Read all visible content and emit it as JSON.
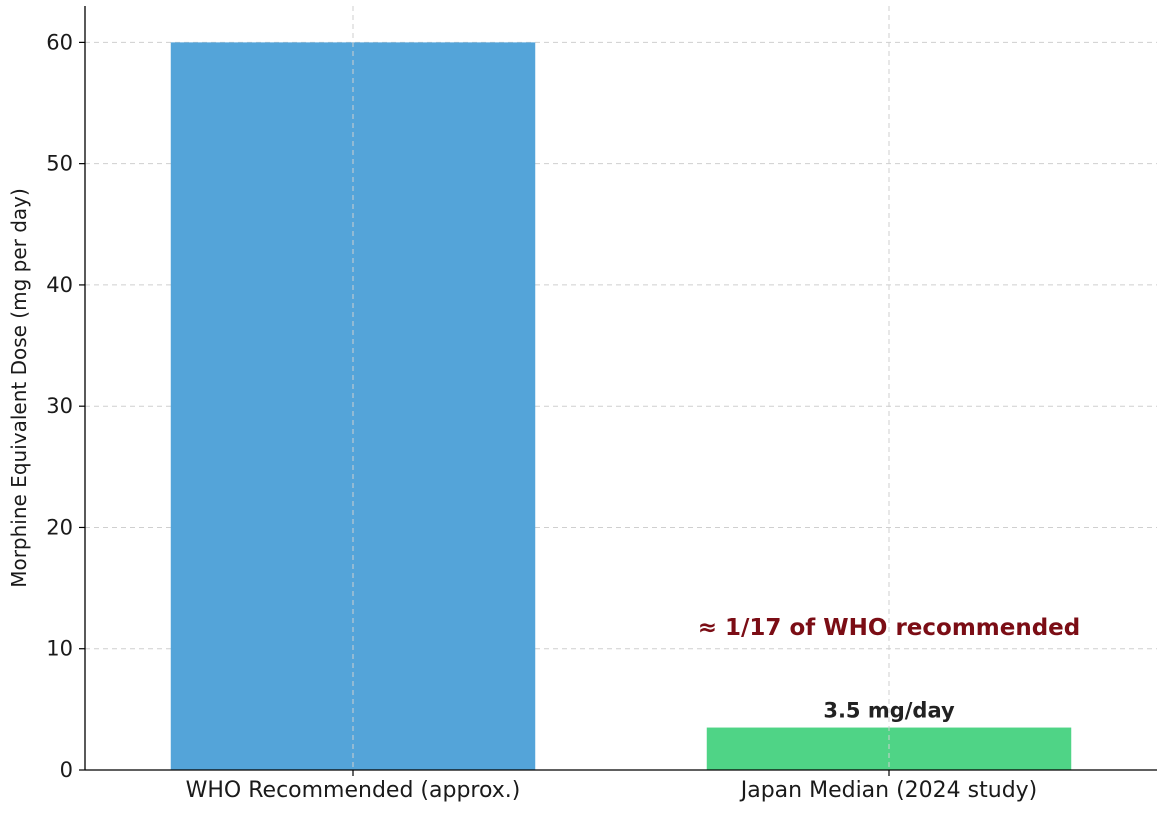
{
  "chart_data": {
    "type": "bar",
    "title": "",
    "xlabel": "",
    "ylabel": "Morphine Equivalent Dose (mg per day)",
    "categories": [
      "WHO Recommended (approx.)",
      "Japan Median (2024 study)"
    ],
    "values": [
      60,
      3.5
    ],
    "bar_colors": [
      "#54a4d9",
      "#4fd486"
    ],
    "ylim": [
      0,
      63
    ],
    "yticks": [
      0,
      10,
      20,
      30,
      40,
      50,
      60
    ],
    "grid": true,
    "legend": "none",
    "data_labels": [
      "",
      "3.5 mg/day"
    ],
    "annotation": {
      "text": "≈ 1/17 of WHO recommended",
      "color": "#7b0d15",
      "y": 11.8
    }
  }
}
